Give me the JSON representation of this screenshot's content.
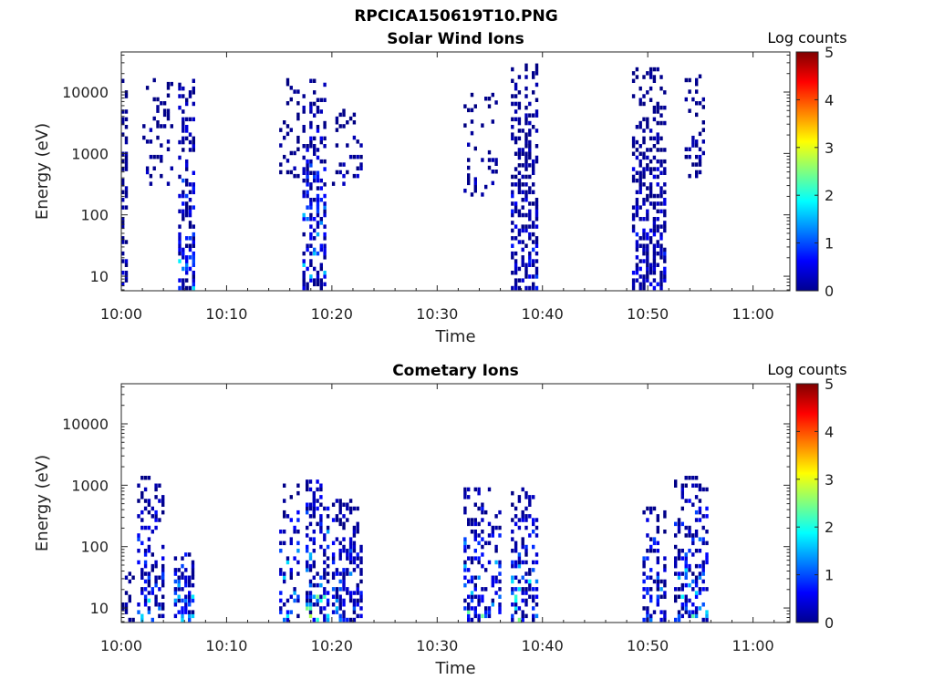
{
  "figure": {
    "title": "RPCICA150619T10.PNG"
  },
  "chart_data": [
    {
      "type": "heatmap",
      "title": "Solar Wind Ions",
      "xlabel": "Time",
      "ylabel": "Energy (eV)",
      "x_ticks": [
        "10:00",
        "10:10",
        "10:20",
        "10:30",
        "10:40",
        "10:50",
        "11:00"
      ],
      "x_range_minutes": [
        0,
        63.5
      ],
      "y_scale": "log",
      "y_ticks": [
        "10",
        "100",
        "1000",
        "10000"
      ],
      "y_range": [
        5.8,
        45000
      ],
      "colorbar": {
        "label": "Log counts",
        "ticks": [
          "0",
          "1",
          "2",
          "3",
          "4",
          "5"
        ],
        "range": [
          0,
          5
        ],
        "colormap": "jet"
      },
      "bursts": [
        {
          "t_start": 0.0,
          "t_end": 0.6,
          "e_low": 6,
          "e_high": 18000,
          "density": 0.55,
          "max_log": 0.7
        },
        {
          "t_start": 2.0,
          "t_end": 4.8,
          "e_low": 300,
          "e_high": 16000,
          "density": 0.22,
          "max_log": 0.5
        },
        {
          "t_start": 5.4,
          "t_end": 7.0,
          "e_low": 6,
          "e_high": 16000,
          "density": 0.6,
          "max_log": 1.9
        },
        {
          "t_start": 15.0,
          "t_end": 16.8,
          "e_low": 400,
          "e_high": 15000,
          "density": 0.2,
          "max_log": 0.4
        },
        {
          "t_start": 17.2,
          "t_end": 19.5,
          "e_low": 6,
          "e_high": 15000,
          "density": 0.55,
          "max_log": 1.9
        },
        {
          "t_start": 20.0,
          "t_end": 22.8,
          "e_low": 300,
          "e_high": 6000,
          "density": 0.2,
          "max_log": 0.5
        },
        {
          "t_start": 32.5,
          "t_end": 35.5,
          "e_low": 200,
          "e_high": 9000,
          "density": 0.2,
          "max_log": 0.4
        },
        {
          "t_start": 37.0,
          "t_end": 39.5,
          "e_low": 6,
          "e_high": 27000,
          "density": 0.6,
          "max_log": 1.0
        },
        {
          "t_start": 48.5,
          "t_end": 51.5,
          "e_low": 6,
          "e_high": 25000,
          "density": 0.55,
          "max_log": 0.9
        },
        {
          "t_start": 53.5,
          "t_end": 55.2,
          "e_low": 400,
          "e_high": 19000,
          "density": 0.3,
          "max_log": 0.5
        }
      ]
    },
    {
      "type": "heatmap",
      "title": "Cometary Ions",
      "xlabel": "Time",
      "ylabel": "Energy (eV)",
      "x_ticks": [
        "10:00",
        "10:10",
        "10:20",
        "10:30",
        "10:40",
        "10:50",
        "11:00"
      ],
      "x_range_minutes": [
        0,
        63.5
      ],
      "y_scale": "log",
      "y_ticks": [
        "10",
        "100",
        "1000",
        "10000"
      ],
      "y_range": [
        5.8,
        45000
      ],
      "colorbar": {
        "label": "Log counts",
        "ticks": [
          "0",
          "1",
          "2",
          "3",
          "4",
          "5"
        ],
        "range": [
          0,
          5
        ],
        "colormap": "jet"
      },
      "bursts": [
        {
          "t_start": 0.0,
          "t_end": 1.0,
          "e_low": 6,
          "e_high": 50,
          "density": 0.3,
          "max_log": 0.5
        },
        {
          "t_start": 1.5,
          "t_end": 4.0,
          "e_low": 6,
          "e_high": 1300,
          "density": 0.45,
          "max_log": 1.9
        },
        {
          "t_start": 5.0,
          "t_end": 6.8,
          "e_low": 6,
          "e_high": 80,
          "density": 0.55,
          "max_log": 2.9
        },
        {
          "t_start": 15.0,
          "t_end": 16.8,
          "e_low": 6,
          "e_high": 1200,
          "density": 0.4,
          "max_log": 2.4
        },
        {
          "t_start": 17.5,
          "t_end": 19.5,
          "e_low": 6,
          "e_high": 1200,
          "density": 0.5,
          "max_log": 3.0
        },
        {
          "t_start": 20.0,
          "t_end": 22.8,
          "e_low": 6,
          "e_high": 600,
          "density": 0.5,
          "max_log": 2.0
        },
        {
          "t_start": 32.5,
          "t_end": 35.8,
          "e_low": 6,
          "e_high": 900,
          "density": 0.5,
          "max_log": 2.3
        },
        {
          "t_start": 37.0,
          "t_end": 39.5,
          "e_low": 6,
          "e_high": 900,
          "density": 0.55,
          "max_log": 2.4
        },
        {
          "t_start": 49.5,
          "t_end": 51.5,
          "e_low": 6,
          "e_high": 500,
          "density": 0.45,
          "max_log": 1.9
        },
        {
          "t_start": 52.5,
          "t_end": 55.5,
          "e_low": 6,
          "e_high": 1300,
          "density": 0.5,
          "max_log": 2.3
        }
      ]
    }
  ]
}
